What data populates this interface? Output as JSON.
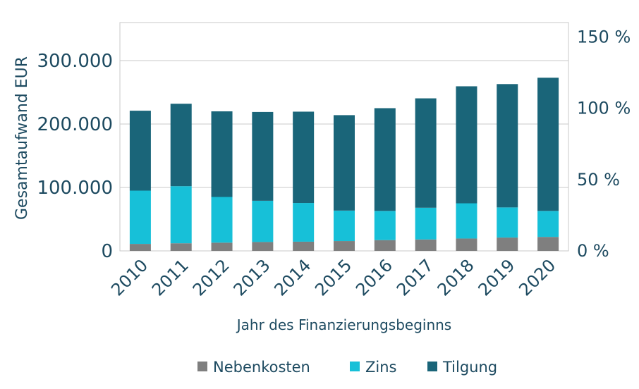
{
  "chart_data": {
    "type": "bar",
    "stacked": true,
    "categories": [
      "2010",
      "2011",
      "2012",
      "2013",
      "2014",
      "2015",
      "2016",
      "2017",
      "2018",
      "2019",
      "2020"
    ],
    "series": [
      {
        "name": "Nebenkosten",
        "color": "#7f7f7f",
        "values": [
          11000,
          12000,
          13000,
          14000,
          14500,
          15500,
          17000,
          18000,
          19500,
          21000,
          22000
        ]
      },
      {
        "name": "Zins",
        "color": "#17c0d8",
        "values": [
          84000,
          90000,
          72000,
          65000,
          61000,
          48000,
          46000,
          50000,
          55500,
          47500,
          41000
        ]
      },
      {
        "name": "Tilgung",
        "color": "#1a6579",
        "values": [
          126000,
          130000,
          135000,
          140000,
          144000,
          150500,
          162000,
          172500,
          184500,
          194500,
          210000
        ]
      }
    ],
    "xlabel": "Jahr des Finanzierungsbeginns",
    "ylabel": "Gesamtaufwand EUR",
    "ylim": [
      0,
      360000
    ],
    "yticks": [
      0,
      100000,
      200000,
      300000
    ],
    "ytick_labels": [
      "0",
      "100.000",
      "200.000",
      "300.000"
    ],
    "y2lim": [
      0,
      160
    ],
    "y2ticks": [
      0,
      50,
      100,
      150
    ],
    "y2tick_labels": [
      "0 %",
      "50 %",
      "100 %",
      "150 %"
    ],
    "grid": "horizontal",
    "legend_position": "bottom"
  }
}
